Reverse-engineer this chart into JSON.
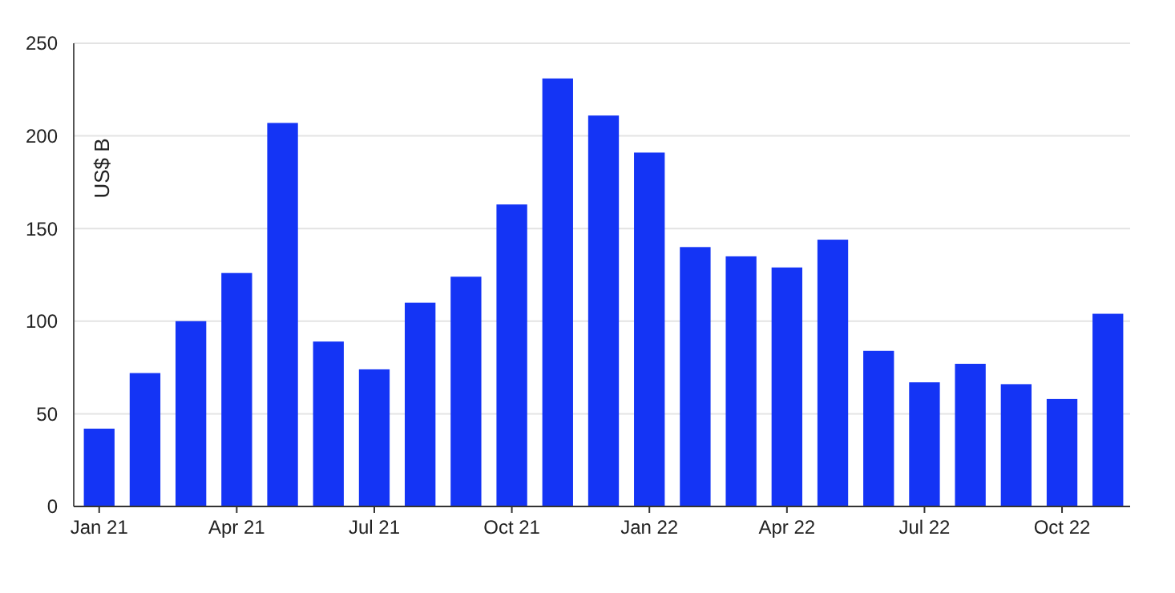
{
  "chart_data": {
    "type": "bar",
    "ylabel": "US$ B",
    "categories": [
      "Jan 21",
      null,
      null,
      "Apr 21",
      null,
      null,
      "Jul 21",
      null,
      null,
      "Oct 21",
      null,
      null,
      "Jan 22",
      null,
      null,
      "Apr 22",
      null,
      null,
      "Jul 22",
      null,
      null,
      "Oct 22",
      null
    ],
    "values": [
      42,
      72,
      100,
      126,
      207,
      89,
      74,
      110,
      124,
      163,
      231,
      211,
      191,
      140,
      135,
      129,
      144,
      84,
      67,
      77,
      66,
      58,
      104
    ],
    "color": "#1434f5",
    "ylim": [
      0,
      250
    ],
    "yticks": [
      0,
      50,
      100,
      150,
      200,
      250
    ],
    "grid": "y"
  }
}
